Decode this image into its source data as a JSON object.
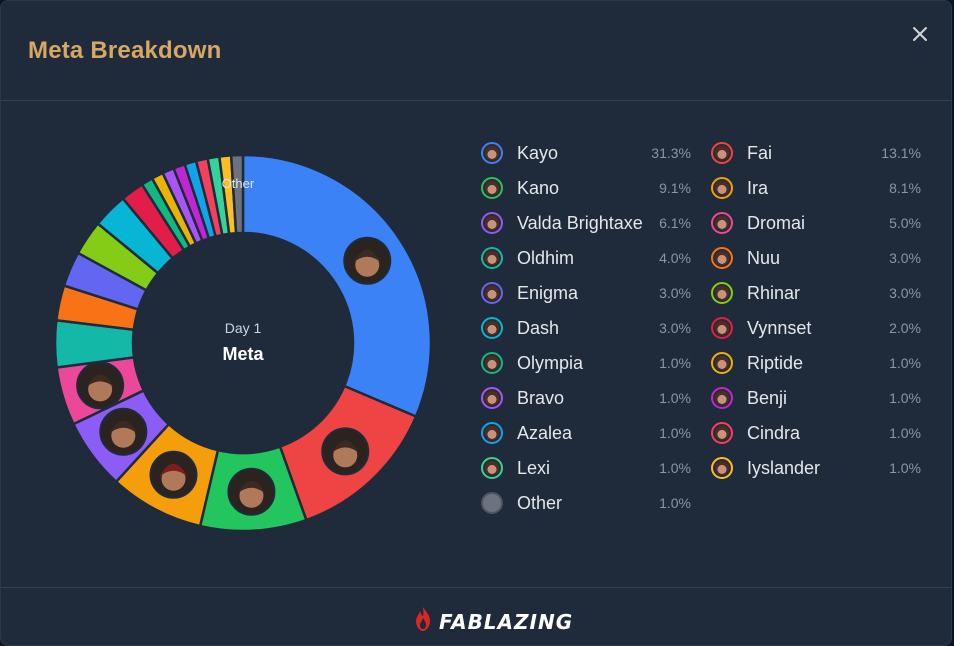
{
  "header": {
    "title": "Meta Breakdown",
    "close_icon": "close-icon"
  },
  "chart_data": {
    "type": "pie",
    "center_label_top": "Day 1",
    "center_label_bottom": "Meta",
    "slice_label": "Other",
    "slices": [
      {
        "name": "Kayo",
        "value": 31.3,
        "color": "#3b82f6",
        "pct": "31.3%"
      },
      {
        "name": "Fai",
        "value": 13.1,
        "color": "#ef4444",
        "pct": "13.1%"
      },
      {
        "name": "Kano",
        "value": 9.1,
        "color": "#22c55e",
        "pct": "9.1%"
      },
      {
        "name": "Ira",
        "value": 8.1,
        "color": "#f59e0b",
        "pct": "8.1%"
      },
      {
        "name": "Valda Brightaxe",
        "value": 6.1,
        "color": "#8b5cf6",
        "pct": "6.1%"
      },
      {
        "name": "Dromai",
        "value": 5.0,
        "color": "#ec4899",
        "pct": "5.0%"
      },
      {
        "name": "Oldhim",
        "value": 4.0,
        "color": "#14b8a6",
        "pct": "4.0%"
      },
      {
        "name": "Nuu",
        "value": 3.0,
        "color": "#f97316",
        "pct": "3.0%"
      },
      {
        "name": "Enigma",
        "value": 3.0,
        "color": "#6366f1",
        "pct": "3.0%"
      },
      {
        "name": "Rhinar",
        "value": 3.0,
        "color": "#84cc16",
        "pct": "3.0%"
      },
      {
        "name": "Dash",
        "value": 3.0,
        "color": "#06b6d4",
        "pct": "3.0%"
      },
      {
        "name": "Vynnset",
        "value": 2.0,
        "color": "#e11d48",
        "pct": "2.0%"
      },
      {
        "name": "Olympia",
        "value": 1.0,
        "color": "#10b981",
        "pct": "1.0%"
      },
      {
        "name": "Riptide",
        "value": 1.0,
        "color": "#eab308",
        "pct": "1.0%"
      },
      {
        "name": "Bravo",
        "value": 1.0,
        "color": "#a855f7",
        "pct": "1.0%"
      },
      {
        "name": "Benji",
        "value": 1.0,
        "color": "#c026d3",
        "pct": "1.0%"
      },
      {
        "name": "Azalea",
        "value": 1.0,
        "color": "#0ea5e9",
        "pct": "1.0%"
      },
      {
        "name": "Cindra",
        "value": 1.0,
        "color": "#f43f5e",
        "pct": "1.0%"
      },
      {
        "name": "Lexi",
        "value": 1.0,
        "color": "#34d399",
        "pct": "1.0%"
      },
      {
        "name": "Iyslander",
        "value": 1.0,
        "color": "#fbbf24",
        "pct": "1.0%"
      },
      {
        "name": "Other",
        "value": 1.0,
        "color": "#6b7280",
        "pct": "1.0%"
      }
    ],
    "legend_order": [
      "Kayo",
      "Fai",
      "Kano",
      "Ira",
      "Valda Brightaxe",
      "Dromai",
      "Oldhim",
      "Nuu",
      "Enigma",
      "Rhinar",
      "Dash",
      "Vynnset",
      "Olympia",
      "Riptide",
      "Bravo",
      "Benji",
      "Azalea",
      "Cindra",
      "Lexi",
      "Iyslander",
      "Other"
    ],
    "legend_columns": 2,
    "avatar_slices": [
      "Kayo",
      "Fai",
      "Kano",
      "Ira",
      "Valda Brightaxe",
      "Dromai"
    ]
  },
  "footer": {
    "brand": "FABLAZING",
    "brand_icon": "flame-icon"
  }
}
